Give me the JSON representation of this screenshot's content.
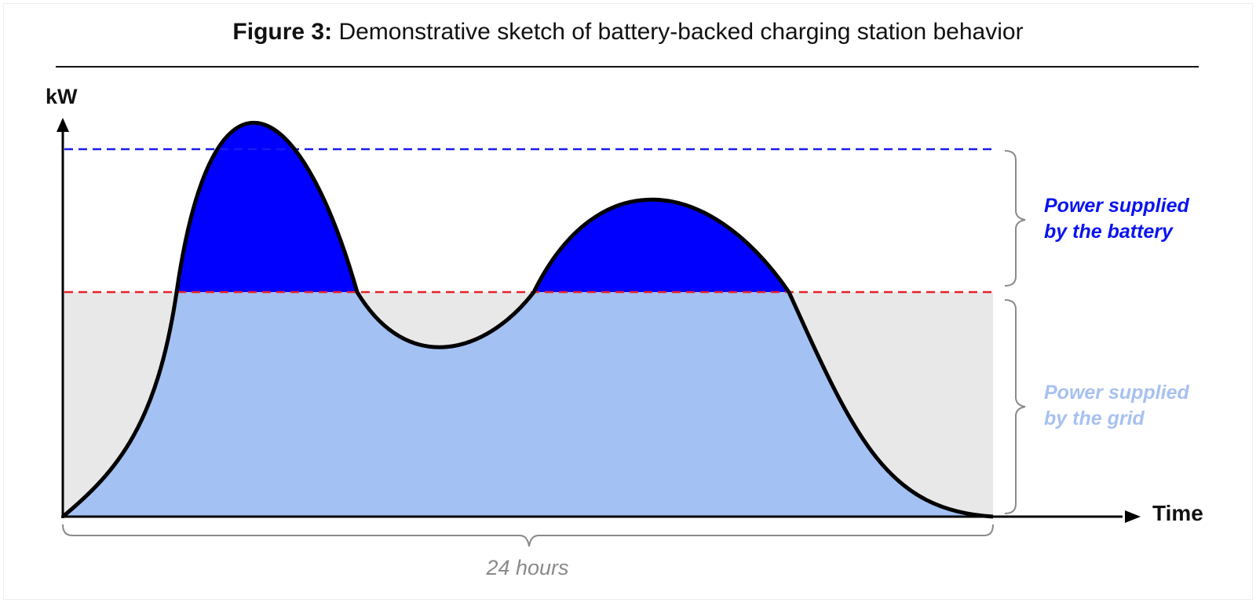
{
  "figure": {
    "title_prefix": "Figure 3:",
    "title_text": "Demonstrative sketch of battery-backed charging station behavior",
    "y_axis_label": "kW",
    "x_axis_label": "Time",
    "duration_label": "24 hours"
  },
  "annotations": {
    "battery_line1": "Power supplied",
    "battery_line2": "by the battery",
    "grid_line1": "Power supplied",
    "grid_line2": "by the grid"
  },
  "colors": {
    "battery_fill": "#0000ff",
    "grid_fill": "#a4c1f3",
    "background_band": "#e8e8e8",
    "peak_line": "#1a1aee",
    "grid_limit_line": "#e8202a",
    "battery_text": "#0a14ee",
    "grid_text": "#a7c1f0",
    "curve": "#000000"
  }
}
